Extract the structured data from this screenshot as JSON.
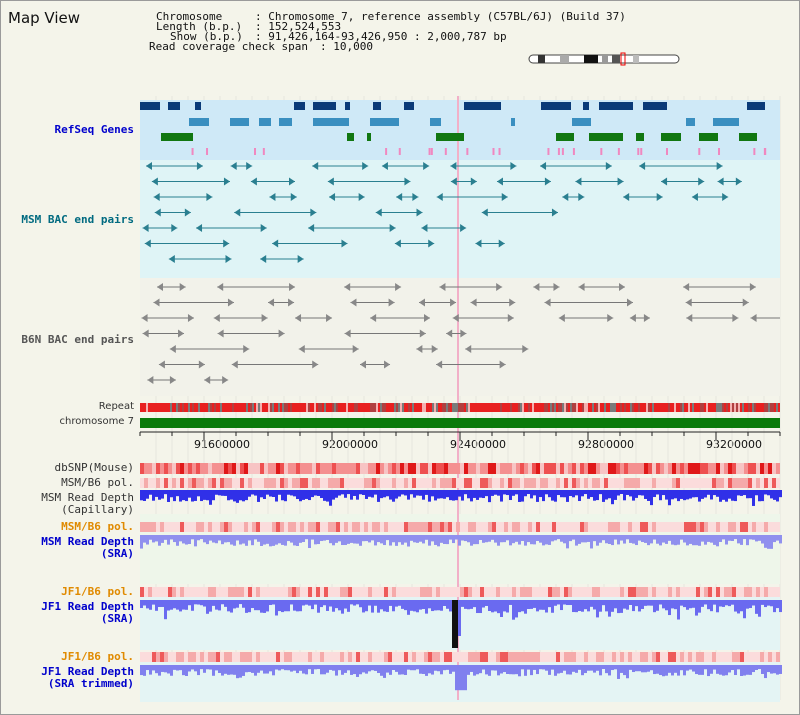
{
  "title": "Map View",
  "info": {
    "chromosome_key": "Chromosome",
    "chromosome_val": "Chromosome 7, reference assembly (C57BL/6J) (Build 37)",
    "length_key": "Length (b.p.)",
    "length_val": "152,524,553",
    "show_key": "Show (b.p.)",
    "show_val": "91,426,164-93,426,950 : 2,000,787 bp",
    "coverage_key": "Read coverage check span",
    "coverage_val": "10,000"
  },
  "tracks": {
    "refseq": "RefSeq Genes",
    "msm_bac": "MSM BAC end pairs",
    "b6n_bac": "B6N BAC end pairs",
    "repeat": "Repeat",
    "chromosome": "chromosome 7",
    "dbsnp": "dbSNP(Mouse)",
    "msm_b6_pol_1": "MSM/B6 pol.",
    "msm_depth_cap_1": "MSM Read Depth",
    "msm_depth_cap_2": "(Capillary)",
    "msm_b6_pol_2": "MSM/B6 pol.",
    "msm_depth_sra_1": "MSM Read Depth",
    "msm_depth_sra_2": "(SRA)",
    "jf1_pol_1": "JF1/B6 pol.",
    "jf1_depth_1": "JF1 Read Depth",
    "jf1_depth_2": "(SRA)",
    "jf1_pol_2": "JF1/B6 pol.",
    "jf1_trim_1": "JF1 Read Depth",
    "jf1_trim_2": "(SRA trimmed)"
  },
  "axis_ticks": [
    "91600000",
    "92000000",
    "92400000",
    "92800000",
    "93200000"
  ],
  "colors": {
    "gene_dark": "#0a3a78",
    "gene_mid": "#3a8fc0",
    "gene_green": "#117711",
    "teal": "#2a7f90",
    "depth_blue": "#2222ee",
    "chromosome_green": "#0a7a0a"
  }
}
